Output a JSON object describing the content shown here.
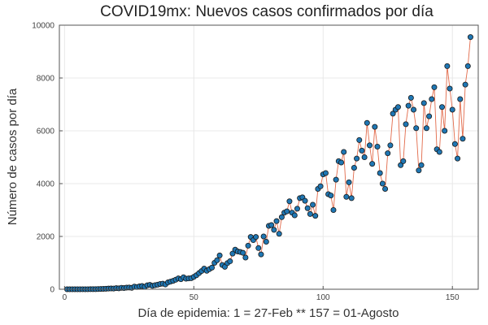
{
  "chart_data": {
    "type": "scatter",
    "title": "COVID19mx: Nuevos casos confirmados por día",
    "xlabel": "Día de epidemia: 1 = 27-Feb ** 157 = 01-Agosto",
    "ylabel": "Número de casos por día",
    "xlim": [
      -2,
      160
    ],
    "ylim": [
      0,
      10000
    ],
    "xticks": [
      0,
      50,
      100,
      150
    ],
    "yticks": [
      0,
      2000,
      4000,
      6000,
      8000,
      10000
    ],
    "grid": true,
    "legend": "none",
    "colors": {
      "line": "#e26a4a",
      "marker": "#1f77b4",
      "marker_edge": "#1a1a1a"
    },
    "series": [
      {
        "x": [
          1,
          2,
          3,
          4,
          5,
          6,
          7,
          8,
          9,
          10,
          11,
          12,
          13,
          14,
          15,
          16,
          17,
          18,
          19,
          20,
          21,
          22,
          23,
          24,
          25,
          26,
          27,
          28,
          29,
          30,
          31,
          32,
          33,
          34,
          35,
          36,
          37,
          38,
          39,
          40,
          41,
          42,
          43,
          44,
          45,
          46,
          47,
          48,
          49,
          50,
          51,
          52,
          53,
          54,
          55,
          56,
          57,
          58,
          59,
          60,
          61,
          62,
          63,
          64,
          65,
          66,
          67,
          68,
          69,
          70,
          71,
          72,
          73,
          74,
          75,
          76,
          77,
          78,
          79,
          80,
          81,
          82,
          83,
          84,
          85,
          86,
          87,
          88,
          89,
          90,
          91,
          92,
          93,
          94,
          95,
          96,
          97,
          98,
          99,
          100,
          101,
          102,
          103,
          104,
          105,
          106,
          107,
          108,
          109,
          110,
          111,
          112,
          113,
          114,
          115,
          116,
          117,
          118,
          119,
          120,
          121,
          122,
          123,
          124,
          125,
          126,
          127,
          128,
          129,
          130,
          131,
          132,
          133,
          134,
          135,
          136,
          137,
          138,
          139,
          140,
          141,
          142,
          143,
          144,
          145,
          146,
          147,
          148,
          149,
          150,
          151,
          152,
          153,
          154,
          155,
          156,
          157
        ],
        "y": [
          1,
          0,
          0,
          1,
          0,
          1,
          2,
          0,
          2,
          3,
          5,
          4,
          9,
          12,
          16,
          20,
          26,
          29,
          27,
          41,
          35,
          54,
          45,
          60,
          64,
          52,
          100,
          86,
          110,
          122,
          92,
          150,
          165,
          130,
          154,
          173,
          201,
          210,
          182,
          260,
          290,
          320,
          362,
          410,
          380,
          455,
          400,
          410,
          420,
          470,
          530,
          610,
          690,
          780,
          700,
          760,
          820,
          1000,
          1100,
          1280,
          920,
          850,
          990,
          1060,
          1350,
          1500,
          1430,
          1410,
          1380,
          1200,
          1650,
          1980,
          1860,
          1980,
          1560,
          1320,
          2000,
          1800,
          2400,
          2430,
          2250,
          2580,
          2100,
          2730,
          2900,
          2950,
          3330,
          2900,
          2800,
          3050,
          3450,
          3480,
          3350,
          3070,
          2850,
          3200,
          2780,
          3800,
          3900,
          4350,
          4400,
          3600,
          3550,
          3000,
          4150,
          4850,
          4800,
          5200,
          3500,
          4050,
          3450,
          4600,
          4950,
          5650,
          5250,
          5000,
          6300,
          5450,
          4750,
          6150,
          5400,
          4400,
          4000,
          3800,
          5150,
          5450,
          6650,
          6800,
          6900,
          4700,
          4850,
          6250,
          6950,
          7250,
          6800,
          6100,
          4500,
          4700,
          7050,
          6100,
          6550,
          7200,
          7650,
          5300,
          5200,
          6900,
          6000,
          8450,
          7600,
          6800,
          5500,
          4950,
          7200,
          5700,
          7750,
          8450,
          9550
        ]
      }
    ]
  }
}
